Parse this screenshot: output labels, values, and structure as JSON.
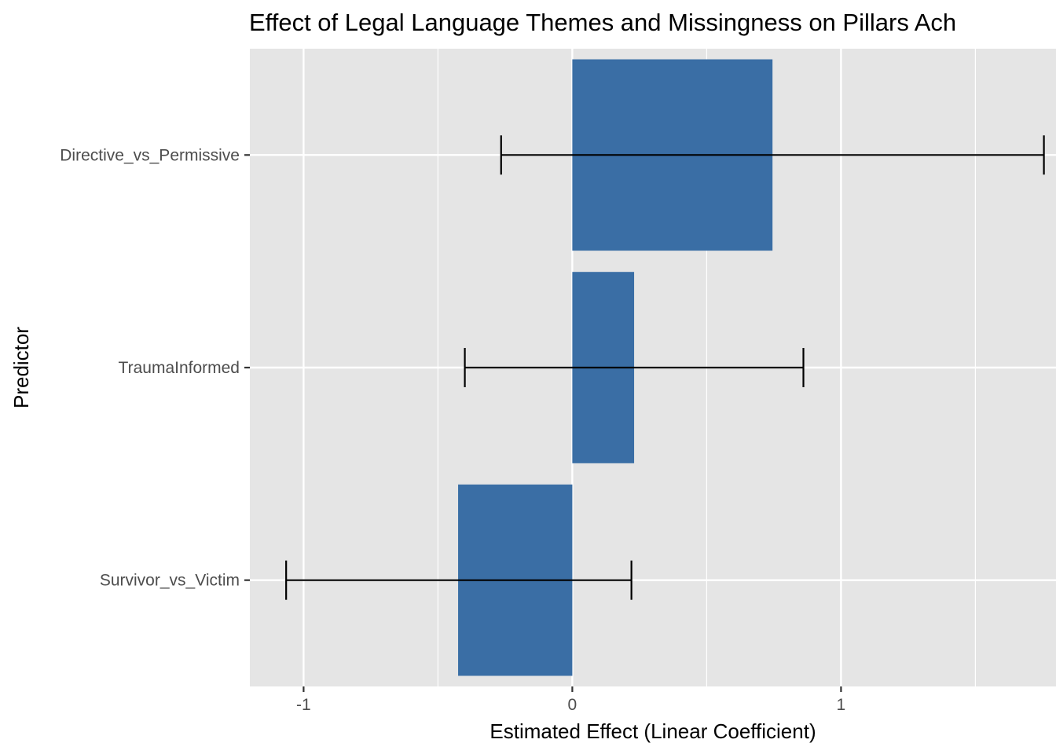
{
  "chart_data": {
    "type": "bar",
    "orientation": "horizontal",
    "title": "Effect of Legal Language Themes and Missingness on Pillars Ach",
    "xlabel": "Estimated Effect (Linear Coefficient)",
    "ylabel": "Predictor",
    "categories": [
      "Directive_vs_Permissive",
      "TraumaInformed",
      "Survivor_vs_Victim"
    ],
    "values": [
      0.745,
      0.23,
      -0.425
    ],
    "ci_low": [
      -0.265,
      -0.4,
      -1.065
    ],
    "ci_high": [
      1.755,
      0.86,
      0.22
    ],
    "xlim": [
      -1.2,
      1.8
    ],
    "xticks": [
      -1,
      0,
      1
    ],
    "xtick_labels": [
      "-1",
      "0",
      "1"
    ],
    "grid": true,
    "legend": "none",
    "colors": {
      "bar": "#3a6ea5",
      "panel": "#e5e5e5",
      "grid": "#ffffff",
      "errorbar": "#000000"
    }
  }
}
